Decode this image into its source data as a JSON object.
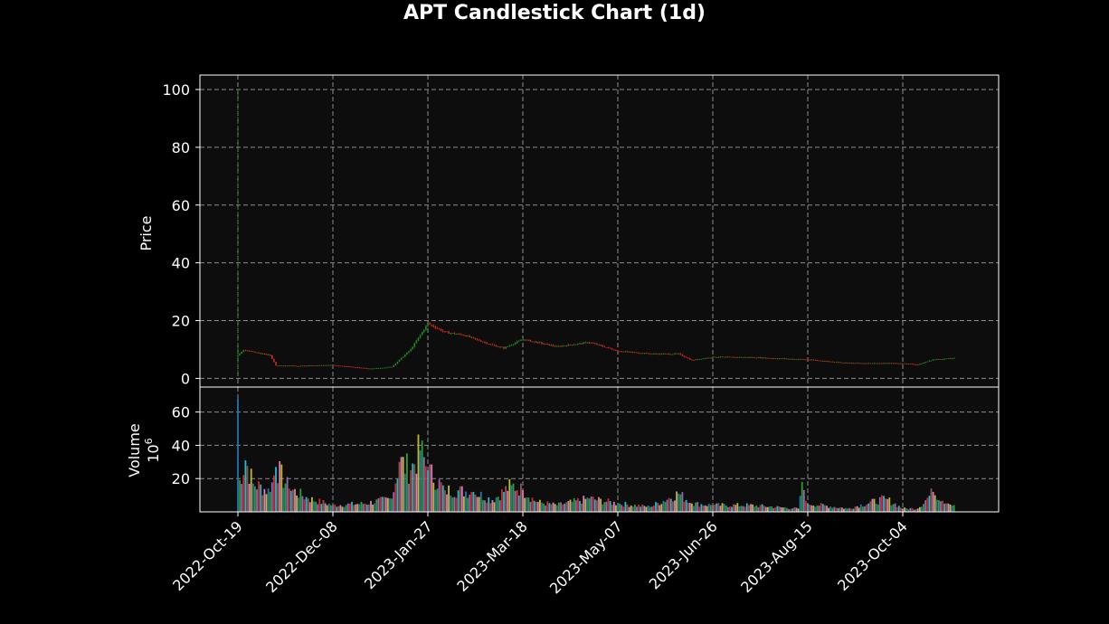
{
  "chart_data": {
    "type": "candlestick",
    "title": "APT Candlestick Chart (1d)",
    "price_panel": {
      "ylabel": "Price",
      "ylim": [
        -3,
        105
      ],
      "yticks": [
        0,
        20,
        40,
        60,
        80,
        100
      ],
      "grid": true,
      "grid_style": "dashed"
    },
    "volume_panel": {
      "ylabel": "Volume",
      "exponent_label": "10^6",
      "unit_multiplier": 1000000,
      "ylim": [
        0,
        75
      ],
      "yticks": [
        20,
        40,
        60
      ],
      "grid": true,
      "grid_style": "dashed"
    },
    "x_axis": {
      "tick_labels": [
        "2022-Oct-19",
        "2022-Dec-08",
        "2023-Jan-27",
        "2023-Mar-18",
        "2023-May-07",
        "2023-Jun-26",
        "2023-Aug-15",
        "2023-Oct-04"
      ],
      "tick_rotation": 45
    },
    "colors": {
      "background": "#000000",
      "plot_background": "#0d0d0d",
      "up": "#1f8a1f",
      "down": "#d42a1a",
      "grid": "#8c8c8c",
      "axis": "#ffffff",
      "text": "#ffffff",
      "volume_colors": [
        "#1f77b4",
        "#2ca02c",
        "#9467bd",
        "#d62728",
        "#17becf",
        "#8c564b",
        "#e377c2",
        "#bcbd22"
      ]
    },
    "price_anchors": [
      {
        "date": "2022-10-19",
        "close": 8.0,
        "high": 100.0,
        "low": 1.0
      },
      {
        "date": "2022-10-22",
        "close": 9.8
      },
      {
        "date": "2022-11-05",
        "close": 8.0
      },
      {
        "date": "2022-11-08",
        "close": 4.5
      },
      {
        "date": "2022-11-20",
        "close": 4.3
      },
      {
        "date": "2022-12-08",
        "close": 4.6
      },
      {
        "date": "2022-12-28",
        "close": 3.3
      },
      {
        "date": "2023-01-08",
        "close": 4.0
      },
      {
        "date": "2023-01-18",
        "close": 10.0
      },
      {
        "date": "2023-01-27",
        "close": 19.0
      },
      {
        "date": "2023-02-05",
        "close": 16.0
      },
      {
        "date": "2023-02-15",
        "close": 15.0
      },
      {
        "date": "2023-03-02",
        "close": 11.5
      },
      {
        "date": "2023-03-08",
        "close": 10.5
      },
      {
        "date": "2023-03-18",
        "close": 13.5
      },
      {
        "date": "2023-04-05",
        "close": 11.0
      },
      {
        "date": "2023-04-22",
        "close": 12.5
      },
      {
        "date": "2023-05-07",
        "close": 9.5
      },
      {
        "date": "2023-05-24",
        "close": 8.5
      },
      {
        "date": "2023-06-08",
        "close": 8.5
      },
      {
        "date": "2023-06-15",
        "close": 6.3
      },
      {
        "date": "2023-06-26",
        "close": 7.4
      },
      {
        "date": "2023-07-15",
        "close": 7.3
      },
      {
        "date": "2023-08-15",
        "close": 6.5
      },
      {
        "date": "2023-09-05",
        "close": 5.3
      },
      {
        "date": "2023-10-04",
        "close": 5.2
      },
      {
        "date": "2023-10-12",
        "close": 4.8
      },
      {
        "date": "2023-10-20",
        "close": 6.5
      },
      {
        "date": "2023-10-31",
        "close": 7.0
      }
    ],
    "volume_anchors": [
      {
        "date": "2022-10-19",
        "volume": 68
      },
      {
        "date": "2022-10-20",
        "volume": 19
      },
      {
        "date": "2022-10-23",
        "volume": 31
      },
      {
        "date": "2022-10-27",
        "volume": 17
      },
      {
        "date": "2022-11-05",
        "volume": 12
      },
      {
        "date": "2022-11-08",
        "volume": 27
      },
      {
        "date": "2022-11-15",
        "volume": 14
      },
      {
        "date": "2022-11-25",
        "volume": 8
      },
      {
        "date": "2022-12-08",
        "volume": 4
      },
      {
        "date": "2022-12-25",
        "volume": 5
      },
      {
        "date": "2023-01-08",
        "volume": 8
      },
      {
        "date": "2023-01-12",
        "volume": 30
      },
      {
        "date": "2023-01-18",
        "volume": 25
      },
      {
        "date": "2023-01-23",
        "volume": 37
      },
      {
        "date": "2023-01-27",
        "volume": 25
      },
      {
        "date": "2023-02-05",
        "volume": 13
      },
      {
        "date": "2023-02-20",
        "volume": 12
      },
      {
        "date": "2023-03-02",
        "volume": 7
      },
      {
        "date": "2023-03-12",
        "volume": 16
      },
      {
        "date": "2023-03-18",
        "volume": 13
      },
      {
        "date": "2023-03-25",
        "volume": 6
      },
      {
        "date": "2023-04-05",
        "volume": 4
      },
      {
        "date": "2023-04-22",
        "volume": 8
      },
      {
        "date": "2023-05-07",
        "volume": 5
      },
      {
        "date": "2023-05-24",
        "volume": 3
      },
      {
        "date": "2023-06-08",
        "volume": 11
      },
      {
        "date": "2023-06-15",
        "volume": 5
      },
      {
        "date": "2023-06-26",
        "volume": 4
      },
      {
        "date": "2023-07-15",
        "volume": 4
      },
      {
        "date": "2023-08-10",
        "volume": 2
      },
      {
        "date": "2023-08-12",
        "volume": 18
      },
      {
        "date": "2023-08-15",
        "volume": 5
      },
      {
        "date": "2023-09-05",
        "volume": 2
      },
      {
        "date": "2023-09-25",
        "volume": 8
      },
      {
        "date": "2023-10-04",
        "volume": 2
      },
      {
        "date": "2023-10-12",
        "volume": 2
      },
      {
        "date": "2023-10-20",
        "volume": 12
      },
      {
        "date": "2023-10-28",
        "volume": 5
      },
      {
        "date": "2023-10-31",
        "volume": 4
      }
    ]
  }
}
